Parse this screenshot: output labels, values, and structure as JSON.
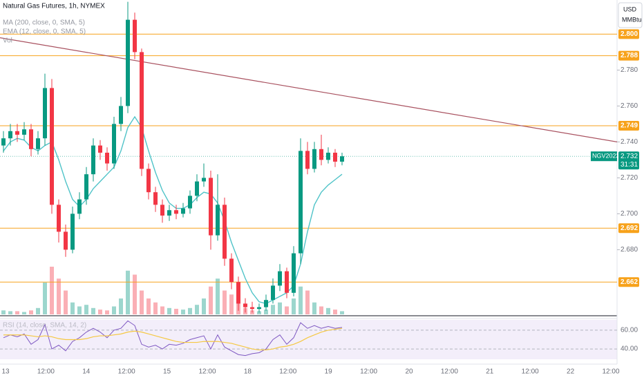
{
  "chart_data": {
    "type": "candlestick",
    "title": "Natural Gas Futures, 1h, NYMEX",
    "indicators": [
      "MA (200, close, 0, SMA, 5)",
      "EMA (12, close, 0, SMA, 5)",
      "Vol"
    ],
    "open": [
      2.738,
      2.742,
      2.746,
      2.744,
      2.747,
      2.736,
      2.742,
      2.77,
      2.705,
      2.69,
      2.68,
      2.7,
      2.708,
      2.722,
      2.738,
      2.734,
      2.728,
      2.75,
      2.76,
      2.808,
      2.79,
      2.725,
      2.712,
      2.705,
      2.699,
      2.702,
      2.7,
      2.703,
      2.71,
      2.718,
      2.72,
      2.688,
      2.705,
      2.675,
      2.662,
      2.65,
      2.648,
      2.647,
      2.648,
      2.652,
      2.66,
      2.668,
      2.656,
      2.678,
      2.735,
      2.725,
      2.736,
      2.73,
      2.734,
      2.729
    ],
    "high": [
      2.746,
      2.75,
      2.75,
      2.751,
      2.75,
      2.746,
      2.778,
      2.775,
      2.708,
      2.694,
      2.704,
      2.712,
      2.726,
      2.742,
      2.741,
      2.737,
      2.754,
      2.765,
      2.818,
      2.812,
      2.792,
      2.728,
      2.715,
      2.708,
      2.705,
      2.705,
      2.706,
      2.713,
      2.722,
      2.728,
      2.724,
      2.722,
      2.709,
      2.678,
      2.665,
      2.653,
      2.651,
      2.65,
      2.655,
      2.664,
      2.672,
      2.67,
      2.682,
      2.742,
      2.74,
      2.74,
      2.744,
      2.737,
      2.736,
      2.734
    ],
    "low": [
      2.734,
      2.738,
      2.74,
      2.741,
      2.732,
      2.733,
      2.738,
      2.7,
      2.684,
      2.676,
      2.678,
      2.697,
      2.705,
      2.718,
      2.73,
      2.724,
      2.725,
      2.746,
      2.756,
      2.786,
      2.721,
      2.708,
      2.701,
      2.695,
      2.696,
      2.697,
      2.698,
      2.7,
      2.707,
      2.715,
      2.68,
      2.685,
      2.671,
      2.658,
      2.646,
      2.645,
      2.645,
      2.645,
      2.646,
      2.65,
      2.657,
      2.653,
      2.654,
      2.672,
      2.722,
      2.723,
      2.727,
      2.728,
      2.726,
      2.727
    ],
    "close": [
      2.742,
      2.746,
      2.744,
      2.747,
      2.736,
      2.742,
      2.77,
      2.705,
      2.69,
      2.68,
      2.7,
      2.708,
      2.722,
      2.738,
      2.734,
      2.728,
      2.75,
      2.76,
      2.808,
      2.79,
      2.725,
      2.712,
      2.705,
      2.699,
      2.702,
      2.7,
      2.703,
      2.71,
      2.718,
      2.72,
      2.688,
      2.705,
      2.675,
      2.662,
      2.65,
      2.648,
      2.647,
      2.648,
      2.652,
      2.66,
      2.668,
      2.656,
      2.678,
      2.735,
      2.725,
      2.736,
      2.73,
      2.734,
      2.729,
      2.732
    ],
    "ma_values": [
      2.735,
      2.74,
      2.742,
      2.741,
      2.737,
      2.735,
      2.738,
      2.74,
      2.73,
      2.718,
      2.708,
      2.704,
      2.708,
      2.714,
      2.718,
      2.722,
      2.726,
      2.735,
      2.748,
      2.754,
      2.748,
      2.735,
      2.723,
      2.713,
      2.706,
      2.703,
      2.703,
      2.705,
      2.709,
      2.712,
      2.711,
      2.706,
      2.696,
      2.684,
      2.674,
      2.664,
      2.656,
      2.651,
      2.65,
      2.652,
      2.654,
      2.656,
      2.66,
      2.672,
      2.69,
      2.705,
      2.712,
      2.716,
      2.719,
      2.722
    ],
    "ma_color": "#4fc3c8",
    "volume": [
      5,
      4,
      4,
      3,
      5,
      8,
      40,
      60,
      45,
      30,
      15,
      10,
      12,
      8,
      6,
      5,
      10,
      20,
      55,
      50,
      30,
      20,
      15,
      10,
      8,
      7,
      6,
      8,
      12,
      20,
      35,
      45,
      30,
      25,
      15,
      8,
      5,
      4,
      6,
      12,
      15,
      10,
      20,
      35,
      30,
      15,
      10,
      8,
      6,
      4
    ],
    "volume_lim": [
      0,
      100
    ],
    "up_color": "#089981",
    "down_color": "#f23645",
    "ylim": [
      2.644,
      2.819
    ],
    "yticks": [
      {
        "value": 2.68,
        "label": "2.680"
      },
      {
        "value": 2.7,
        "label": "2.700"
      },
      {
        "value": 2.72,
        "label": "2.720"
      },
      {
        "value": 2.74,
        "label": "2.740"
      },
      {
        "value": 2.76,
        "label": "2.760"
      },
      {
        "value": 2.78,
        "label": "2.780"
      }
    ],
    "levels": [
      {
        "value": 2.8,
        "label": "2.800"
      },
      {
        "value": 2.788,
        "label": "2.788"
      },
      {
        "value": 2.749,
        "label": "2.749"
      },
      {
        "value": 2.692,
        "label": "2.692"
      },
      {
        "value": 2.662,
        "label": "2.662"
      }
    ],
    "level_color": "#f7a21b",
    "trend": [
      2.798,
      2.74
    ],
    "trend_color": "#a8505e",
    "symbol": "NGV2023",
    "last_price": {
      "value": 2.732,
      "label": "2.732"
    },
    "countdown": "31:31",
    "currency": "USD",
    "unit": "MMBtu",
    "x_labels": [
      "13",
      "12:00",
      "14",
      "12:00",
      "15",
      "12:00",
      "18",
      "12:00",
      "19",
      "12:00",
      "20",
      "12:00",
      "21",
      "12:00",
      "22",
      "12:00"
    ],
    "rsi": {
      "title": "RSI (14, close, SMA, 14, 2)",
      "values": [
        52,
        55,
        53,
        56,
        45,
        50,
        66,
        40,
        44,
        38,
        48,
        52,
        58,
        62,
        58,
        52,
        60,
        62,
        70,
        65,
        45,
        42,
        44,
        40,
        45,
        44,
        46,
        50,
        52,
        54,
        40,
        55,
        42,
        38,
        34,
        33,
        35,
        36,
        40,
        50,
        55,
        45,
        52,
        68,
        62,
        65,
        62,
        64,
        62,
        63
      ],
      "ma_values": [
        55,
        55,
        55,
        55,
        54,
        53,
        54,
        53,
        51,
        50,
        50,
        50,
        51,
        53,
        54,
        54,
        55,
        56,
        58,
        59,
        58,
        56,
        54,
        52,
        50,
        48,
        47,
        47,
        47,
        48,
        48,
        48,
        47,
        46,
        44,
        42,
        40,
        39,
        39,
        40,
        42,
        43,
        45,
        48,
        52,
        55,
        58,
        60,
        61,
        62
      ],
      "color": "#7e57c2",
      "ma_color": "#f5c842",
      "ylim": [
        29,
        71
      ],
      "yticks": [
        {
          "value": 60,
          "label": "60.00"
        },
        {
          "value": 40,
          "label": "40.00"
        }
      ]
    }
  }
}
